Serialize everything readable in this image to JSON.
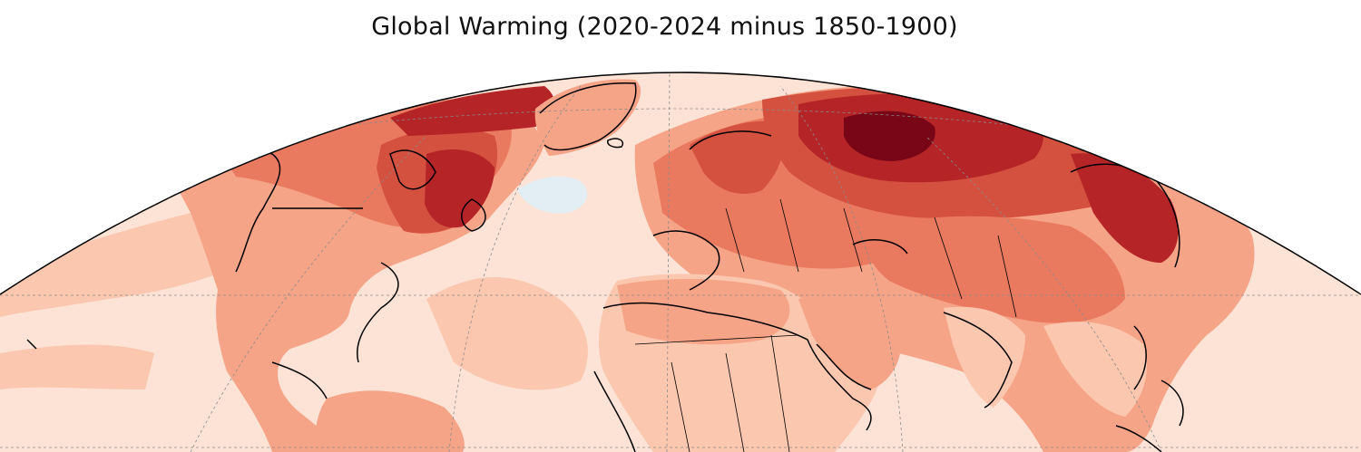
{
  "title": "Global Warming (2020-2024 minus 1850-1900)",
  "projection": "mollweide",
  "region_shown": "Northern Hemisphere, mid-latitudes to Arctic",
  "colormap": "Reds",
  "colors": {
    "palest": "#fde3d6",
    "pale": "#fbc7af",
    "light": "#f6a487",
    "medium": "#ea7a5f",
    "strong": "#d5513f",
    "deep": "#b52427",
    "darkest": "#790617",
    "cool_patch": "#e3eef4",
    "coastline": "#000000",
    "gridline": "#8a8a8a"
  },
  "gridlines": true,
  "coastlines": true,
  "country_borders": true
}
